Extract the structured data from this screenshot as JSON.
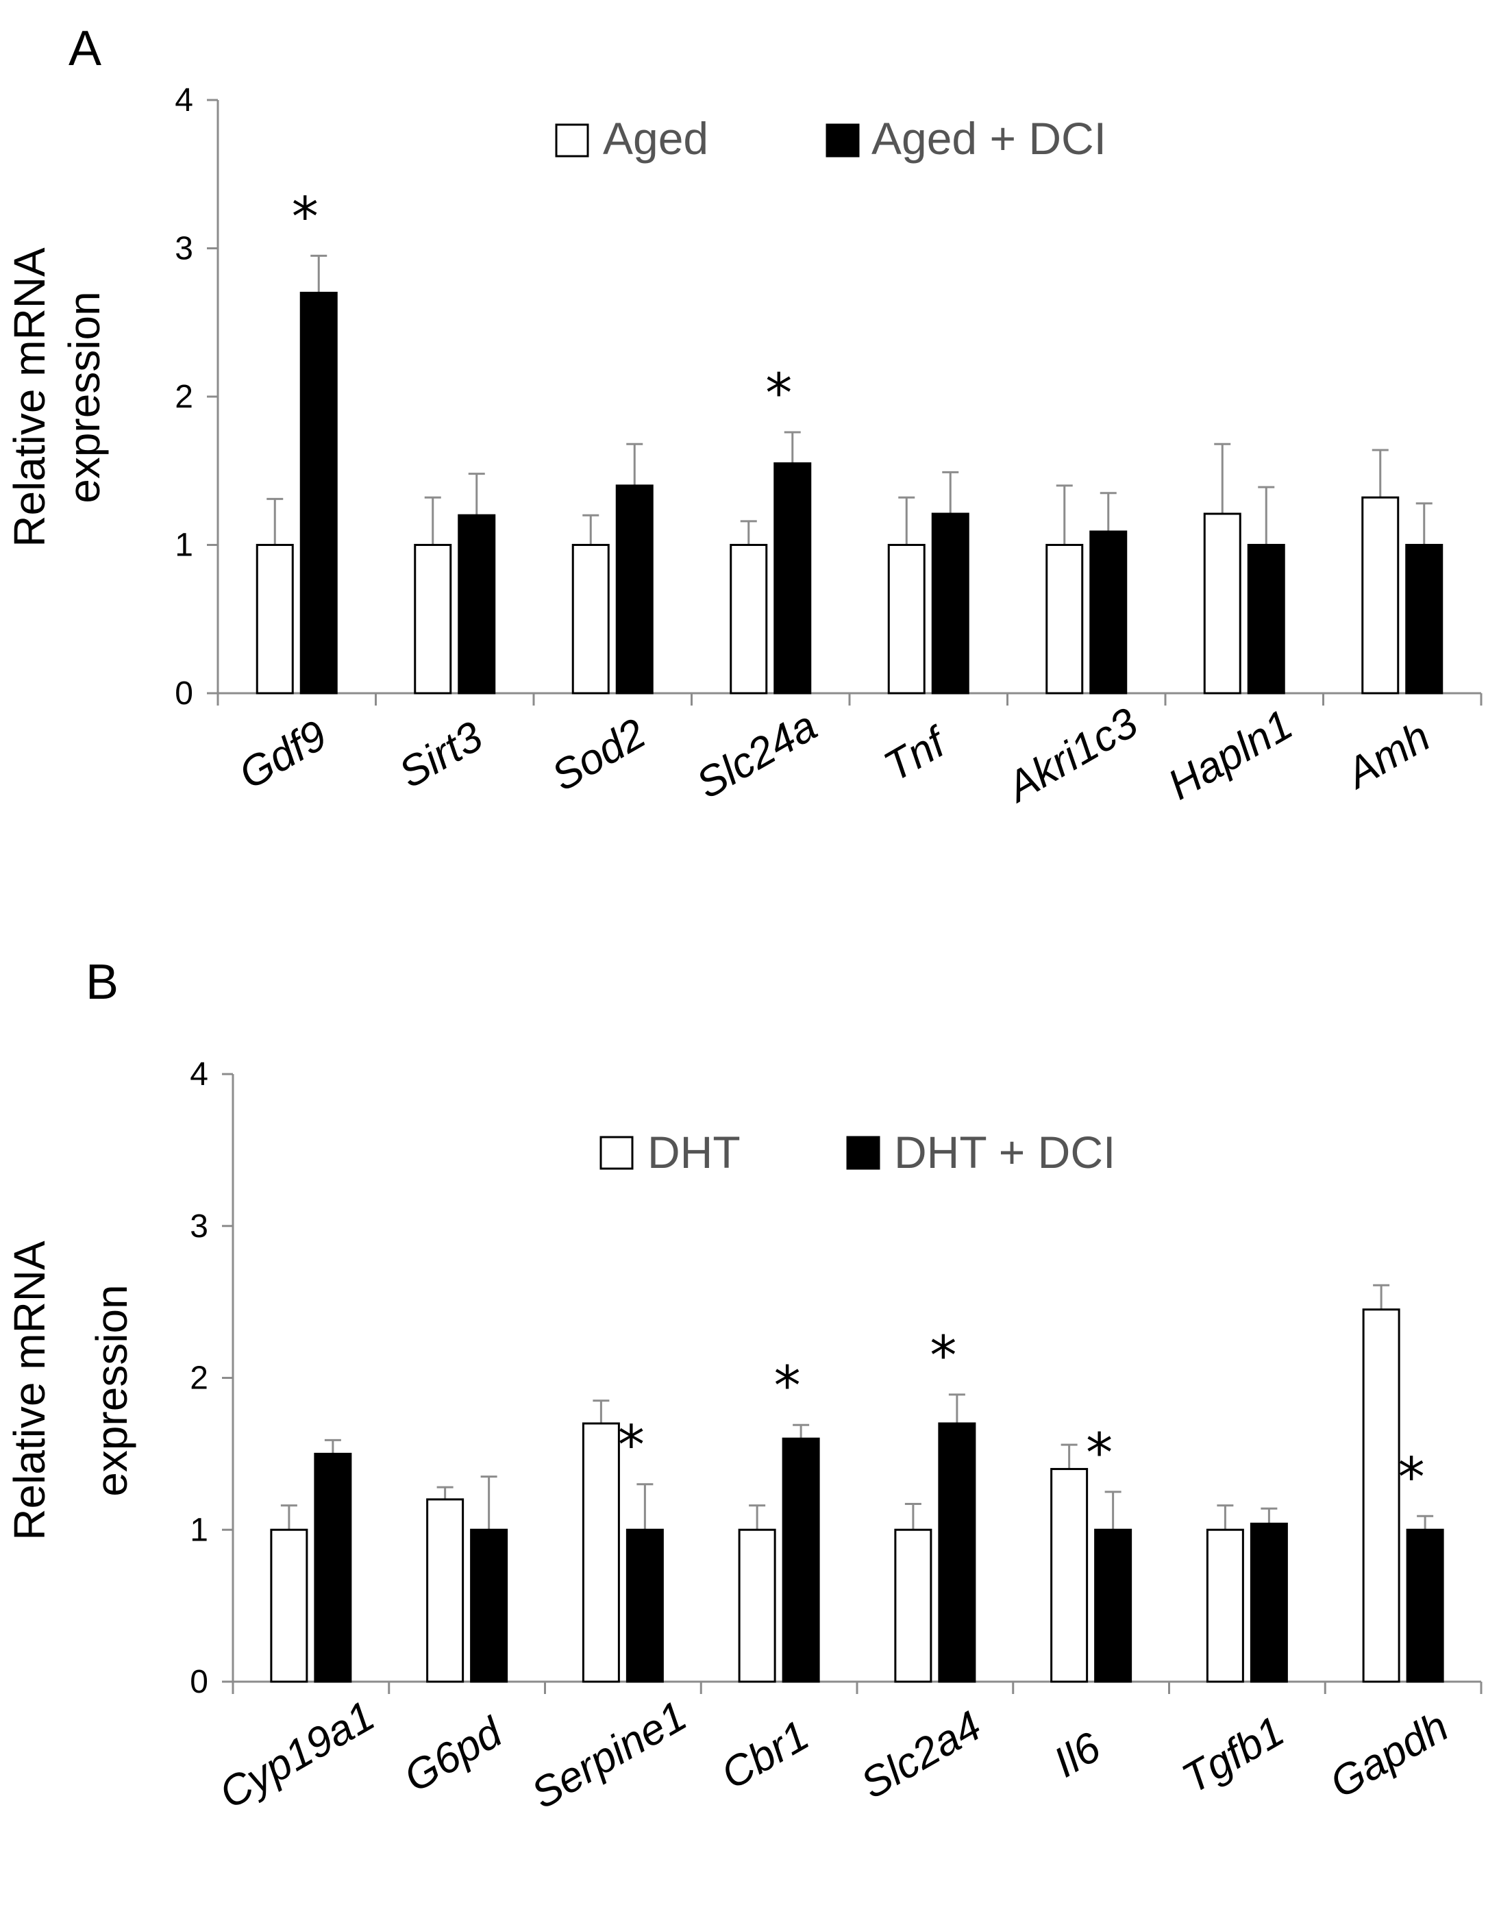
{
  "chart_data": [
    {
      "type": "bar",
      "panel": "A",
      "ylabel_lines": [
        "Relative mRNA",
        "expression"
      ],
      "ylim": [
        0,
        4
      ],
      "yticks": [
        "0",
        "1",
        "2",
        "3",
        "4"
      ],
      "legend_position": "top-center",
      "categories": [
        "Gdf9",
        "Sirt3",
        "Sod2",
        "Slc24a",
        "Tnf",
        "Akri1c3",
        "Hapln1",
        "Amh"
      ],
      "series": [
        {
          "name": "Aged",
          "fill": "#ffffff",
          "values": [
            1.0,
            1.0,
            1.0,
            1.0,
            1.0,
            1.0,
            1.21,
            1.32
          ],
          "errors": [
            0.31,
            0.32,
            0.2,
            0.16,
            0.32,
            0.4,
            0.47,
            0.32
          ]
        },
        {
          "name": "Aged + DCI",
          "fill": "#000000",
          "values": [
            2.7,
            1.2,
            1.4,
            1.55,
            1.21,
            1.09,
            1.0,
            1.0
          ],
          "errors": [
            0.25,
            0.28,
            0.28,
            0.21,
            0.28,
            0.26,
            0.39,
            0.28
          ]
        }
      ],
      "significance": [
        {
          "category_index": 0,
          "series_index": 1,
          "label": "*"
        },
        {
          "category_index": 3,
          "series_index": 1,
          "label": "*"
        }
      ]
    },
    {
      "type": "bar",
      "panel": "B",
      "ylabel_lines": [
        "Relative  mRNA",
        "expression"
      ],
      "ylim": [
        0,
        4
      ],
      "yticks": [
        "0",
        "1",
        "2",
        "3",
        "4"
      ],
      "legend_position": "top-center",
      "categories": [
        "Cyp19a1",
        "G6pd",
        "Serpine1",
        "Cbr1",
        "Slc2a4",
        "Il6",
        "Tgfb1",
        "Gapdh"
      ],
      "series": [
        {
          "name": "DHT",
          "fill": "#ffffff",
          "values": [
            1.0,
            1.2,
            1.7,
            1.0,
            1.0,
            1.4,
            1.0,
            2.45
          ],
          "errors": [
            0.16,
            0.08,
            0.15,
            0.16,
            0.17,
            0.16,
            0.16,
            0.16
          ]
        },
        {
          "name": "DHT + DCI",
          "fill": "#000000",
          "values": [
            1.5,
            1.0,
            1.0,
            1.6,
            1.7,
            1.0,
            1.04,
            1.0
          ],
          "errors": [
            0.09,
            0.35,
            0.3,
            0.09,
            0.19,
            0.25,
            0.1,
            0.09
          ]
        }
      ],
      "significance": [
        {
          "category_index": 2,
          "series_index": 1,
          "label": "*"
        },
        {
          "category_index": 3,
          "series_index": 1,
          "label": "*"
        },
        {
          "category_index": 4,
          "series_index": 1,
          "label": "*"
        },
        {
          "category_index": 5,
          "series_index": 1,
          "label": "*"
        },
        {
          "category_index": 7,
          "series_index": 1,
          "label": "*"
        }
      ]
    }
  ]
}
